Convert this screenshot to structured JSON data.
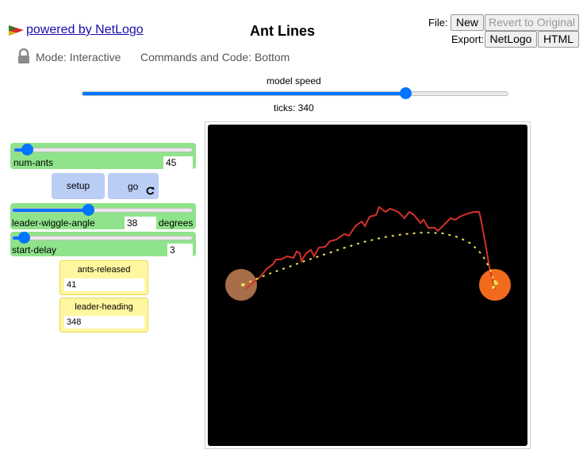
{
  "header": {
    "powered_by": "powered by NetLogo",
    "title": "Ant Lines",
    "file_label": "File:",
    "new_label": "New",
    "revert_label": "Revert to Original",
    "export_label": "Export:",
    "netlogo_label": "NetLogo",
    "html_label": "HTML",
    "mode_text": "Mode: Interactive",
    "commands_text": "Commands and Code: Bottom"
  },
  "speed": {
    "label": "model speed",
    "ticks_text": "ticks: 340",
    "value_fraction": 0.76
  },
  "widgets": {
    "num_ants": {
      "label": "num-ants",
      "value": "45",
      "fraction": 0.07
    },
    "setup_label": "setup",
    "go_label": "go",
    "wiggle": {
      "label": "leader-wiggle-angle",
      "value": "38",
      "units": "degrees",
      "fraction": 0.42
    },
    "start_delay": {
      "label": "start-delay",
      "value": "3",
      "fraction": 0.06
    },
    "ants_released": {
      "label": "ants-released",
      "value": "41"
    },
    "leader_heading": {
      "label": "leader-heading",
      "value": "348"
    }
  },
  "colors": {
    "accent": "#0075ff",
    "slider_bg": "#8fe38a",
    "button_bg": "#b9cdf5",
    "monitor_bg": "#fff7a0",
    "nest": "#a86e4a",
    "food": "#f26b1d",
    "leader_path": "#d3322a",
    "ants": "#e7e24a"
  }
}
